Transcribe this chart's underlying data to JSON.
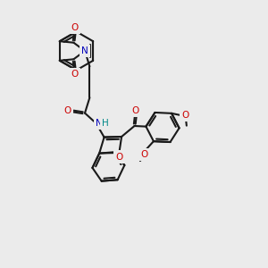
{
  "bg": "#ebebeb",
  "bc": "#1a1a1a",
  "OC": "#cc0000",
  "NC": "#0000bb",
  "HC": "#008888",
  "lw": 1.5,
  "fs": 7.5,
  "xlim": [
    0,
    10
  ],
  "ylim": [
    0,
    10
  ]
}
